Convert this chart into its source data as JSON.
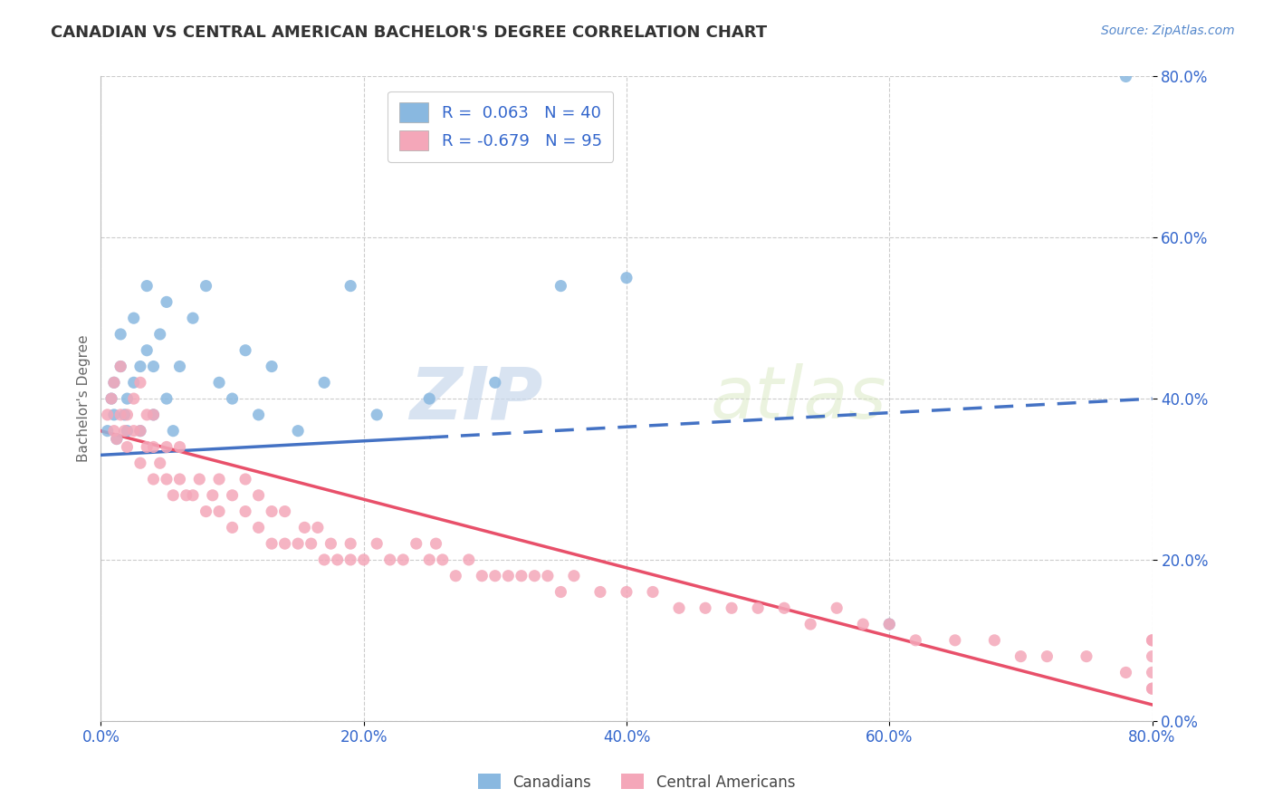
{
  "title": "CANADIAN VS CENTRAL AMERICAN BACHELOR'S DEGREE CORRELATION CHART",
  "source_text": "Source: ZipAtlas.com",
  "ylabel": "Bachelor's Degree",
  "legend_label1": "Canadians",
  "legend_label2": "Central Americans",
  "R1": 0.063,
  "N1": 40,
  "R2": -0.679,
  "N2": 95,
  "color1": "#89b8e0",
  "color2": "#f4a7b9",
  "line_color1": "#4472c4",
  "line_color2": "#e8506a",
  "background_color": "#ffffff",
  "watermark_zip": "ZIP",
  "watermark_atlas": "atlas",
  "xlim": [
    0.0,
    0.8
  ],
  "ylim": [
    0.0,
    0.8
  ],
  "xticks": [
    0.0,
    0.2,
    0.4,
    0.6,
    0.8
  ],
  "yticks": [
    0.0,
    0.2,
    0.4,
    0.6,
    0.8
  ],
  "canadians_x": [
    0.005,
    0.008,
    0.01,
    0.01,
    0.012,
    0.015,
    0.015,
    0.018,
    0.02,
    0.02,
    0.025,
    0.025,
    0.03,
    0.03,
    0.035,
    0.035,
    0.04,
    0.04,
    0.045,
    0.05,
    0.05,
    0.055,
    0.06,
    0.07,
    0.08,
    0.09,
    0.1,
    0.11,
    0.12,
    0.13,
    0.15,
    0.17,
    0.19,
    0.21,
    0.25,
    0.3,
    0.35,
    0.4,
    0.6,
    0.78
  ],
  "canadians_y": [
    0.36,
    0.4,
    0.38,
    0.42,
    0.35,
    0.44,
    0.48,
    0.38,
    0.36,
    0.4,
    0.42,
    0.5,
    0.36,
    0.44,
    0.46,
    0.54,
    0.38,
    0.44,
    0.48,
    0.4,
    0.52,
    0.36,
    0.44,
    0.5,
    0.54,
    0.42,
    0.4,
    0.46,
    0.38,
    0.44,
    0.36,
    0.42,
    0.54,
    0.38,
    0.4,
    0.42,
    0.54,
    0.55,
    0.12,
    0.8
  ],
  "central_x": [
    0.005,
    0.008,
    0.01,
    0.01,
    0.012,
    0.015,
    0.015,
    0.018,
    0.02,
    0.02,
    0.025,
    0.025,
    0.03,
    0.03,
    0.03,
    0.035,
    0.035,
    0.04,
    0.04,
    0.04,
    0.045,
    0.05,
    0.05,
    0.055,
    0.06,
    0.06,
    0.065,
    0.07,
    0.075,
    0.08,
    0.085,
    0.09,
    0.09,
    0.1,
    0.1,
    0.11,
    0.11,
    0.12,
    0.12,
    0.13,
    0.13,
    0.14,
    0.14,
    0.15,
    0.155,
    0.16,
    0.165,
    0.17,
    0.175,
    0.18,
    0.19,
    0.19,
    0.2,
    0.21,
    0.22,
    0.23,
    0.24,
    0.25,
    0.255,
    0.26,
    0.27,
    0.28,
    0.29,
    0.3,
    0.31,
    0.32,
    0.33,
    0.34,
    0.35,
    0.36,
    0.38,
    0.4,
    0.42,
    0.44,
    0.46,
    0.48,
    0.5,
    0.52,
    0.54,
    0.56,
    0.58,
    0.6,
    0.62,
    0.65,
    0.68,
    0.7,
    0.72,
    0.75,
    0.78,
    0.8,
    0.8,
    0.8,
    0.8,
    0.8,
    0.8
  ],
  "central_y": [
    0.38,
    0.4,
    0.36,
    0.42,
    0.35,
    0.38,
    0.44,
    0.36,
    0.34,
    0.38,
    0.36,
    0.4,
    0.32,
    0.36,
    0.42,
    0.34,
    0.38,
    0.3,
    0.34,
    0.38,
    0.32,
    0.3,
    0.34,
    0.28,
    0.3,
    0.34,
    0.28,
    0.28,
    0.3,
    0.26,
    0.28,
    0.26,
    0.3,
    0.24,
    0.28,
    0.26,
    0.3,
    0.24,
    0.28,
    0.22,
    0.26,
    0.22,
    0.26,
    0.22,
    0.24,
    0.22,
    0.24,
    0.2,
    0.22,
    0.2,
    0.22,
    0.2,
    0.2,
    0.22,
    0.2,
    0.2,
    0.22,
    0.2,
    0.22,
    0.2,
    0.18,
    0.2,
    0.18,
    0.18,
    0.18,
    0.18,
    0.18,
    0.18,
    0.16,
    0.18,
    0.16,
    0.16,
    0.16,
    0.14,
    0.14,
    0.14,
    0.14,
    0.14,
    0.12,
    0.14,
    0.12,
    0.12,
    0.1,
    0.1,
    0.1,
    0.08,
    0.08,
    0.08,
    0.06,
    0.06,
    0.08,
    0.04,
    0.04,
    0.1,
    0.1
  ]
}
